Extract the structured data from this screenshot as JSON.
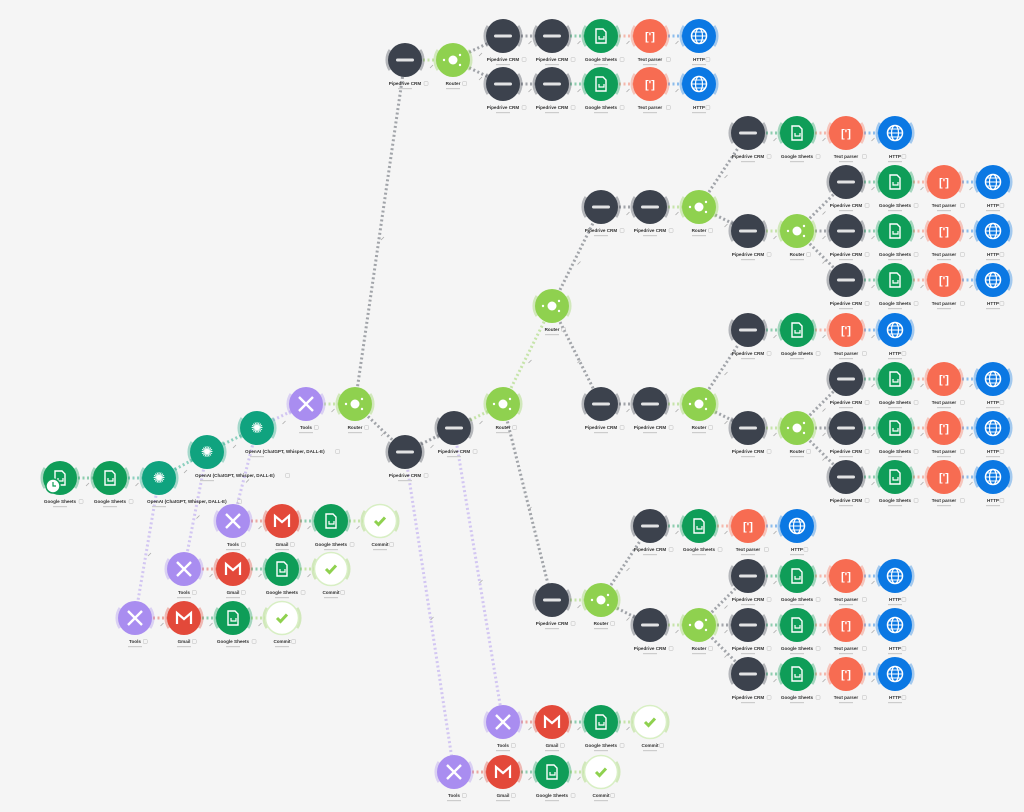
{
  "scenario": {
    "module_types": {
      "S": {
        "label": "Google Sheets",
        "color": "#0f9d58",
        "icon": "sheets-icon"
      },
      "O": {
        "label": "OpenAI (ChatGPT, Whisper, DALL-E)",
        "color": "#10a37f",
        "icon": "openai-icon"
      },
      "T": {
        "label": "Tools",
        "color": "#a98df0",
        "icon": "tools-icon"
      },
      "R": {
        "label": "Router",
        "color": "#8fd14f",
        "icon": "router-icon"
      },
      "P": {
        "label": "Pipedrive CRM",
        "color": "#3c424d",
        "icon": "pipedrive-icon"
      },
      "X": {
        "label": "Text parser",
        "color": "#f76c52",
        "icon": "text-parser-icon"
      },
      "H": {
        "label": "HTTP",
        "color": "#0b78e3",
        "icon": "http-globe-icon"
      },
      "G": {
        "label": "Gmail",
        "color": "#e3493a",
        "icon": "gmail-icon"
      },
      "C": {
        "label": "Commit",
        "color": "#8fd14f",
        "icon": "commit-check-icon"
      }
    },
    "modules": [
      "S",
      "S",
      "O",
      "O",
      "O",
      "T",
      "R",
      "P",
      "R",
      "P",
      "P",
      "S",
      "X",
      "H",
      "P",
      "P",
      "S",
      "X",
      "H",
      "P",
      "P",
      "R",
      "R",
      "P",
      "P",
      "R",
      "P",
      "S",
      "X",
      "H",
      "P",
      "R",
      "P",
      "S",
      "X",
      "H",
      "P",
      "S",
      "X",
      "H",
      "P",
      "S",
      "X",
      "H",
      "P",
      "P",
      "R",
      "P",
      "S",
      "X",
      "H",
      "P",
      "R",
      "P",
      "S",
      "X",
      "H",
      "P",
      "S",
      "X",
      "H",
      "P",
      "S",
      "X",
      "H",
      "P",
      "R",
      "P",
      "S",
      "X",
      "H",
      "P",
      "R",
      "P",
      "S",
      "X",
      "H",
      "P",
      "S",
      "X",
      "H",
      "P",
      "S",
      "X",
      "H",
      "T",
      "G",
      "S",
      "C",
      "T",
      "G",
      "S",
      "C",
      "T",
      "G",
      "S",
      "C",
      "T",
      "G",
      "S",
      "C",
      "T",
      "G",
      "S",
      "C"
    ],
    "background": "#f5f5f5",
    "edge_color": "#c8c8c8"
  }
}
